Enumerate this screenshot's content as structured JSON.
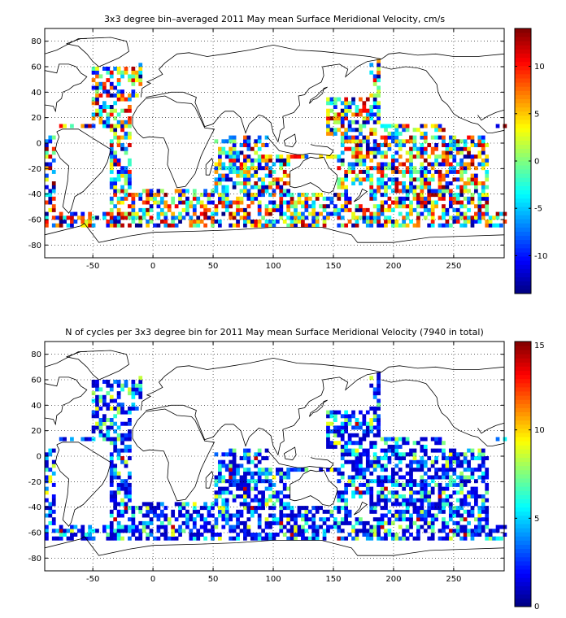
{
  "panels": [
    {
      "id": "velocity",
      "title": "3x3 degree bin–averaged 2011 May mean Surface Meridional Velocity, cm/s",
      "x_ticks": [
        "-50",
        "0",
        "50",
        "100",
        "150",
        "200",
        "250"
      ],
      "y_ticks": [
        "80",
        "60",
        "40",
        "20",
        "0",
        "-20",
        "-40",
        "-60",
        "-80"
      ],
      "colorbar_ticks": [
        "10",
        "5",
        "0",
        "-5",
        "-10"
      ],
      "colormap": "jet"
    },
    {
      "id": "counts",
      "title": "N of cycles per 3x3 degree bin for 2011 May mean Surface Meridional Velocity (7940 in total)",
      "x_ticks": [
        "-50",
        "0",
        "50",
        "100",
        "150",
        "200",
        "250"
      ],
      "y_ticks": [
        "80",
        "60",
        "40",
        "20",
        "0",
        "-20",
        "-40",
        "-60",
        "-80"
      ],
      "colorbar_ticks": [
        "15",
        "10",
        "5",
        "0"
      ],
      "colormap": "jet"
    }
  ],
  "chart_data": [
    {
      "type": "heatmap",
      "title": "3x3 degree bin–averaged 2011 May mean Surface Meridional Velocity, cm/s",
      "xlim": [
        -90,
        292
      ],
      "ylim": [
        -90,
        90
      ],
      "x_ticks": [
        -50,
        0,
        50,
        100,
        150,
        200,
        250
      ],
      "y_ticks": [
        -80,
        -60,
        -40,
        -20,
        0,
        20,
        40,
        60,
        80
      ],
      "bin_size_deg": 3,
      "color_range": [
        -14,
        14
      ],
      "colorbar_ticks": [
        -10,
        -5,
        0,
        5,
        10
      ],
      "grid": "dotted"
    },
    {
      "type": "heatmap",
      "title": "N of cycles per 3x3 degree bin for 2011 May mean Surface Meridional Velocity (7940 in total)",
      "xlim": [
        -90,
        292
      ],
      "ylim": [
        -90,
        90
      ],
      "x_ticks": [
        -50,
        0,
        50,
        100,
        150,
        200,
        250
      ],
      "y_ticks": [
        -80,
        -60,
        -40,
        -20,
        0,
        20,
        40,
        60,
        80
      ],
      "bin_size_deg": 3,
      "total": 7940,
      "color_range": [
        0,
        15
      ],
      "colorbar_ticks": [
        0,
        5,
        10,
        15
      ],
      "grid": "dotted"
    }
  ]
}
